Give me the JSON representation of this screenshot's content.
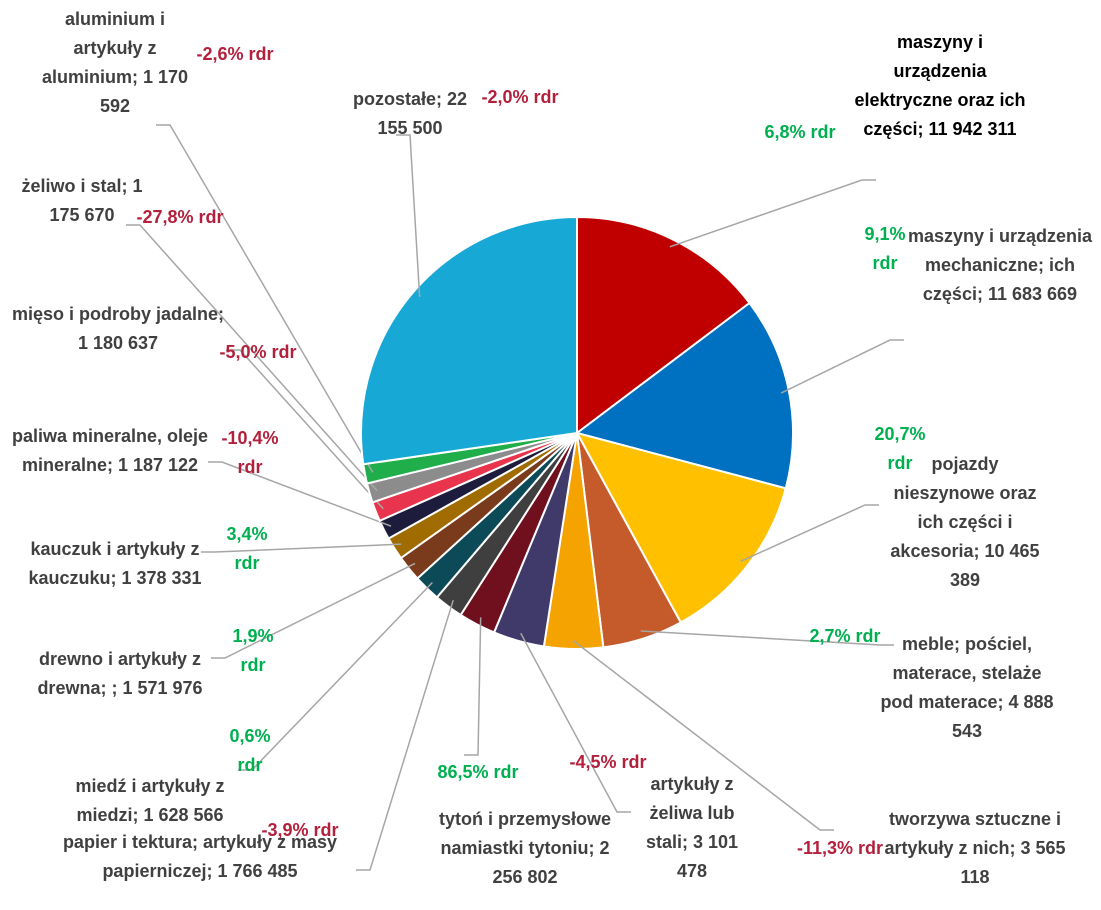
{
  "chart_data": {
    "type": "pie",
    "categories": [
      "maszyny i urządzenia elektryczne oraz ich części;",
      "maszyny i urządzenia mechaniczne; ich części;",
      "pojazdy nieszynowe oraz ich części i akcesoria;",
      "meble; pościel, materace, stelaże pod materace;",
      "tworzywa sztuczne i artykuły z nich;",
      "artykuły z żeliwa lub stali;",
      "tytoń i przemysłowe namiastki tytoniu;",
      "papier i tektura; artykuły z masy papierniczej;",
      "miedź i artykuły z miedzi;",
      "drewno i artykuły z drewna; ;",
      "kauczuk i artykuły z kauczuku;",
      "paliwa mineralne, oleje mineralne;",
      "mięso i podroby jadalne;",
      "żeliwo i stal;",
      "aluminium i artykuły z aluminium;",
      "pozostałe;"
    ],
    "values": [
      11942311,
      11683669,
      10465389,
      4888543,
      3565118,
      3101478,
      2256802,
      1766485,
      1628566,
      1571976,
      1378331,
      1187122,
      1180637,
      1175670,
      1170592,
      22155500
    ],
    "value_labels": [
      "11 942 311",
      "11 683 669",
      "10 465 389",
      "4 888 543",
      "3 565 118",
      "3 101 478",
      "2 256 802",
      "1 766 485",
      "1 628 566",
      "1 571 976",
      "1 378 331",
      "1 187 122",
      "1 180 637",
      "1 175 670",
      "1 170 592",
      "22 155 500"
    ],
    "colors": [
      "#c00000",
      "#0070c0",
      "#ffc000",
      "#c55a2b",
      "#f4a300",
      "#403a6a",
      "#70101e",
      "#3f3f3f",
      "#0d4a58",
      "#7a3a1c",
      "#a06c00",
      "#1e1c3c",
      "#e8344c",
      "#8c8c8c",
      "#1fae4a",
      "#17a8d6"
    ],
    "changes": [
      6.8,
      9.1,
      20.7,
      2.7,
      -11.3,
      -4.5,
      86.5,
      -3.9,
      0.6,
      1.9,
      3.4,
      -10.4,
      -5.0,
      -27.8,
      -2.6,
      -2.0
    ],
    "change_labels": [
      "6,8% rdr",
      "9,1% rdr",
      "20,7% rdr",
      "2,7% rdr",
      "-11,3% rdr",
      "-4,5% rdr",
      "86,5% rdr",
      "-3,9% rdr",
      "0,6% rdr",
      "1,9% rdr",
      "3,4% rdr",
      "-10,4% rdr",
      "-5,0% rdr",
      "-27,8% rdr",
      "-2,6% rdr",
      "-2,0% rdr"
    ],
    "positive_color": "#00b050",
    "negative_color": "#b3203c"
  }
}
